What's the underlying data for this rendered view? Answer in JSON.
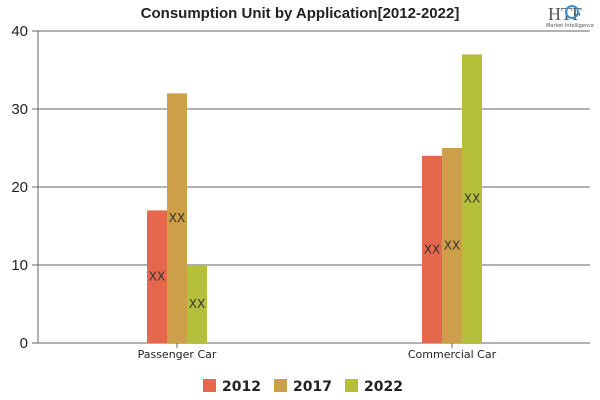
{
  "chart_data": {
    "type": "bar",
    "title": "Consumption Unit by  Application[2012-2022]",
    "categories": [
      "Passenger Car",
      "Commercial Car"
    ],
    "series": [
      {
        "name": "2012",
        "values": [
          17,
          24
        ],
        "color": "#e5684d"
      },
      {
        "name": "2017",
        "values": [
          32,
          25
        ],
        "color": "#cc9f48"
      },
      {
        "name": "2022",
        "values": [
          10,
          37
        ],
        "color": "#b5bf3a"
      }
    ],
    "data_labels": "XX",
    "ylim": [
      0,
      40
    ],
    "yticks": [
      0,
      10,
      20,
      30,
      40
    ],
    "grid": true,
    "legend": "bottom",
    "xlabel": "",
    "ylabel": ""
  },
  "logo": {
    "text": "HTF",
    "subtext": "Market Intelligence"
  }
}
